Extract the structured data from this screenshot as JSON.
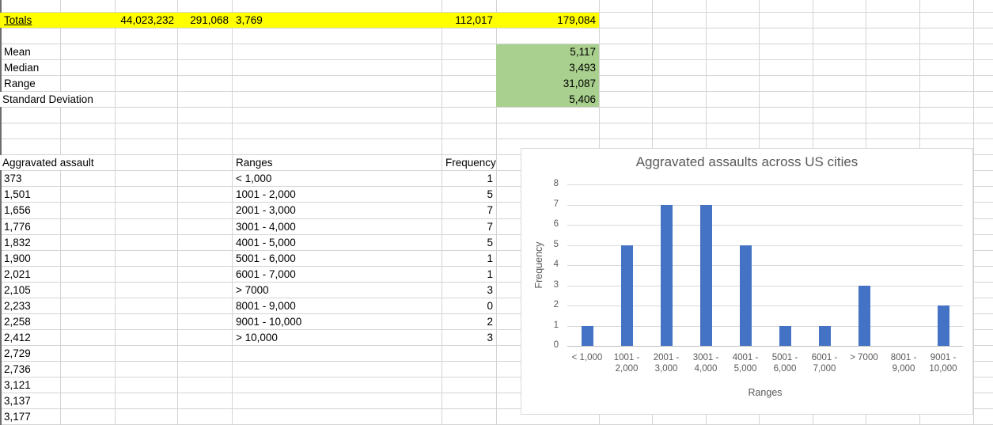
{
  "colors": {
    "highlight_yellow": "#FFFF00",
    "highlight_green": "#A9D08E",
    "bar_blue": "#4472C4",
    "chart_text_gray": "#595959"
  },
  "totals_row": {
    "label": "Totals",
    "col_c": "44,023,232",
    "col_d": "291,068",
    "col_e": "3,769",
    "col_f": "112,017",
    "col_g": "179,084"
  },
  "stats": {
    "rows": [
      {
        "label": "Mean",
        "value": "5,117"
      },
      {
        "label": "Median",
        "value": "3,493"
      },
      {
        "label": "Range",
        "value": "31,087"
      },
      {
        "label": "Standard Deviation",
        "value": "5,406"
      }
    ]
  },
  "assault_column": {
    "header": "Aggravated assault",
    "values": [
      "373",
      "1,501",
      "1,656",
      "1,776",
      "1,832",
      "1,900",
      "2,021",
      "2,105",
      "2,233",
      "2,258",
      "2,412",
      "2,729",
      "2,736",
      "3,121",
      "3,137",
      "3,177"
    ]
  },
  "frequency_table": {
    "range_header": "Ranges",
    "frequency_header": "Frequency",
    "rows": [
      {
        "range": "< 1,000",
        "frequency": "1"
      },
      {
        "range": "1001 - 2,000",
        "frequency": "5"
      },
      {
        "range": "2001 - 3,000",
        "frequency": "7"
      },
      {
        "range": "3001 - 4,000",
        "frequency": "7"
      },
      {
        "range": "4001 - 5,000",
        "frequency": "5"
      },
      {
        "range": "5001 - 6,000",
        "frequency": "1"
      },
      {
        "range": "6001 - 7,000",
        "frequency": "1"
      },
      {
        "range": "> 7000",
        "frequency": "3"
      },
      {
        "range": "8001 - 9,000",
        "frequency": "0"
      },
      {
        "range": "9001 - 10,000",
        "frequency": "2"
      },
      {
        "range": "> 10,000",
        "frequency": "3"
      }
    ]
  },
  "chart_data": {
    "type": "bar",
    "title": "Aggravated assaults across US cities",
    "xlabel": "Ranges",
    "ylabel": "Frequency",
    "ylim": [
      0,
      8
    ],
    "yticks": [
      0,
      1,
      2,
      3,
      4,
      5,
      6,
      7,
      8
    ],
    "categories": [
      "< 1,000",
      "1001 - 2,000",
      "2001 - 3,000",
      "3001 - 4,000",
      "4001 - 5,000",
      "5001 - 6,000",
      "6001 - 7,000",
      "> 7000",
      "8001 - 9,000",
      "9001 - 10,000"
    ],
    "category_label_lines": [
      [
        "< 1,000"
      ],
      [
        "1001 -",
        "2,000"
      ],
      [
        "2001 -",
        "3,000"
      ],
      [
        "3001 -",
        "4,000"
      ],
      [
        "4001 -",
        "5,000"
      ],
      [
        "5001 -",
        "6,000"
      ],
      [
        "6001 -",
        "7,000"
      ],
      [
        "> 7000"
      ],
      [
        "8001 -",
        "9,000"
      ],
      [
        "9001 -",
        "10,000"
      ]
    ],
    "values": [
      1,
      5,
      7,
      7,
      5,
      1,
      1,
      3,
      0,
      2
    ],
    "bar_color": "#4472C4",
    "grid": true,
    "legend": "none"
  }
}
